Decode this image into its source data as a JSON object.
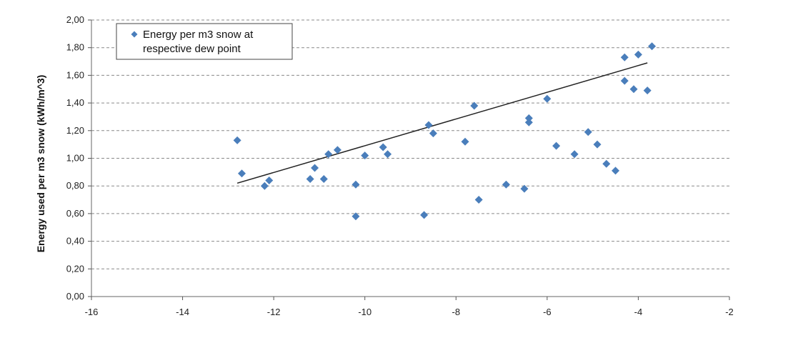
{
  "chart_data": {
    "type": "scatter",
    "title": "",
    "xlabel": "",
    "ylabel": "Energy used per m3 snow (kWh/m^3)",
    "xlim": [
      -16,
      -2
    ],
    "ylim": [
      0,
      2
    ],
    "x_ticks": [
      "-16",
      "-14",
      "-12",
      "-10",
      "-8",
      "-6",
      "-4",
      "-2"
    ],
    "y_ticks": [
      "0,00",
      "0,20",
      "0,40",
      "0,60",
      "0,80",
      "1,00",
      "1,20",
      "1,40",
      "1,60",
      "1,80",
      "2,00"
    ],
    "grid": "horizontal-dashed",
    "legend_position": "top-left",
    "series": [
      {
        "name": "Energy per m3 snow at respective dew point",
        "name_lines": [
          "Energy per m3 snow at",
          "respective dew point"
        ],
        "color": "#4a7ebb",
        "marker": "diamond",
        "points": [
          [
            -12.8,
            1.13
          ],
          [
            -12.7,
            0.89
          ],
          [
            -12.2,
            0.8
          ],
          [
            -12.1,
            0.84
          ],
          [
            -11.2,
            0.85
          ],
          [
            -11.1,
            0.93
          ],
          [
            -10.9,
            0.85
          ],
          [
            -10.8,
            1.03
          ],
          [
            -10.6,
            1.06
          ],
          [
            -10.2,
            0.81
          ],
          [
            -10.2,
            0.58
          ],
          [
            -10.0,
            1.02
          ],
          [
            -9.6,
            1.08
          ],
          [
            -9.5,
            1.03
          ],
          [
            -8.7,
            0.59
          ],
          [
            -8.6,
            1.24
          ],
          [
            -8.5,
            1.18
          ],
          [
            -7.8,
            1.12
          ],
          [
            -7.6,
            1.38
          ],
          [
            -7.5,
            0.7
          ],
          [
            -6.9,
            0.81
          ],
          [
            -6.5,
            0.78
          ],
          [
            -6.4,
            1.29
          ],
          [
            -6.4,
            1.26
          ],
          [
            -6.0,
            1.43
          ],
          [
            -5.8,
            1.09
          ],
          [
            -5.4,
            1.03
          ],
          [
            -5.1,
            1.19
          ],
          [
            -4.9,
            1.1
          ],
          [
            -4.7,
            0.96
          ],
          [
            -4.5,
            0.91
          ],
          [
            -4.3,
            1.73
          ],
          [
            -4.3,
            1.56
          ],
          [
            -4.1,
            1.5
          ],
          [
            -4.0,
            1.75
          ],
          [
            -3.8,
            1.49
          ],
          [
            -3.7,
            1.81
          ]
        ]
      }
    ],
    "trendline": {
      "type": "linear",
      "color": "#222222",
      "x": [
        -12.8,
        -3.8
      ],
      "y": [
        0.82,
        1.69
      ]
    }
  }
}
